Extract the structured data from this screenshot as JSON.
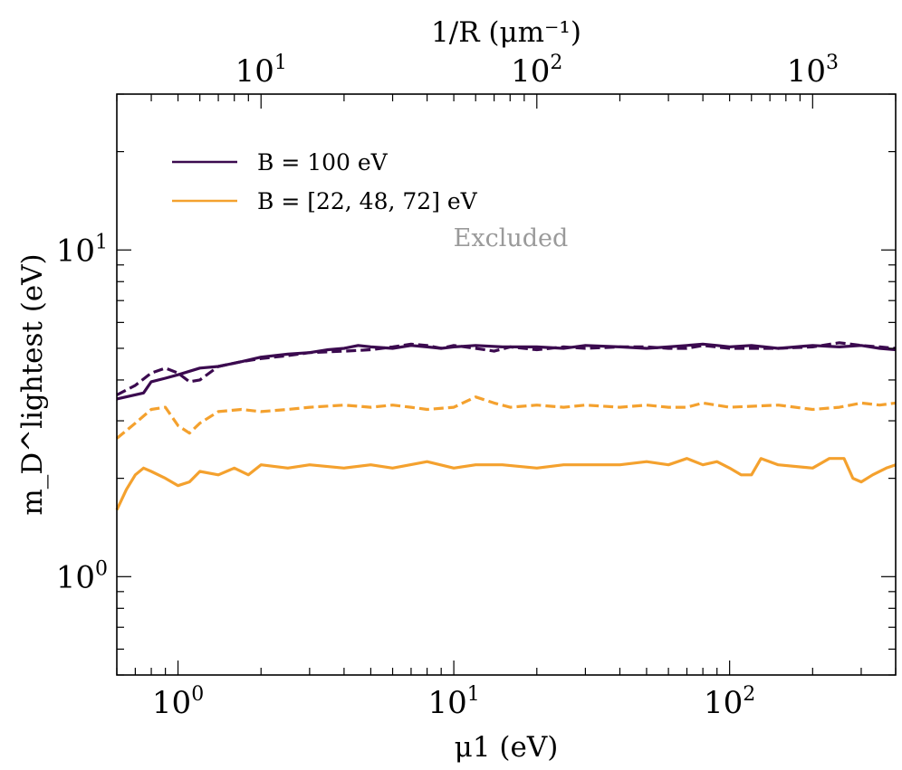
{
  "chart_data": {
    "type": "line",
    "title": "",
    "xlabel": "μ1 (eV)",
    "ylabel": "m_D^lightest (eV)",
    "top_xlabel": "1/R (μm⁻¹)",
    "xscale": "log",
    "yscale": "log",
    "xlim": [
      0.6,
      400
    ],
    "ylim": [
      0.5,
      30
    ],
    "top_xlim": [
      3.0,
      2000
    ],
    "x_ticks": [
      {
        "value": 1,
        "base": "10",
        "exp": "0"
      },
      {
        "value": 10,
        "base": "10",
        "exp": "1"
      },
      {
        "value": 100,
        "base": "10",
        "exp": "2"
      }
    ],
    "y_ticks": [
      {
        "value": 1,
        "base": "10",
        "exp": "0"
      },
      {
        "value": 10,
        "base": "10",
        "exp": "1"
      }
    ],
    "top_x_ticks": [
      {
        "value": 10,
        "base": "10",
        "exp": "1"
      },
      {
        "value": 100,
        "base": "10",
        "exp": "2"
      },
      {
        "value": 1000,
        "base": "10",
        "exp": "3"
      }
    ],
    "legend": {
      "placement": "top-left",
      "entries": [
        {
          "label": "B = 100 eV",
          "color": "#3b0a4f"
        },
        {
          "label": "B = [22, 48, 72] eV",
          "color": "#f4a12e"
        }
      ]
    },
    "annotations": [
      {
        "text": "Excluded",
        "x": 12,
        "y": 10.5,
        "color": "#9a9a9a"
      }
    ],
    "series": [
      {
        "color": "#3b0a4f",
        "dash": "solid",
        "x": [
          0.6,
          0.75,
          0.8,
          0.9,
          1.0,
          1.2,
          1.4,
          1.7,
          2.0,
          2.5,
          3.0,
          3.5,
          4.0,
          4.5,
          5.0,
          6.0,
          7.0,
          8.0,
          9.0,
          10.0,
          12.0,
          15.0,
          20.0,
          25.0,
          30.0,
          40.0,
          50.0,
          60.0,
          70.0,
          80.0,
          90.0,
          100.0,
          120.0,
          150.0,
          200.0,
          250.0,
          300.0,
          350.0,
          400.0
        ],
        "y": [
          3.5,
          3.65,
          3.95,
          4.05,
          4.15,
          4.35,
          4.4,
          4.55,
          4.7,
          4.8,
          4.85,
          4.95,
          5.0,
          5.1,
          5.05,
          5.0,
          5.1,
          5.05,
          5.0,
          5.05,
          5.1,
          5.05,
          5.05,
          5.0,
          5.1,
          5.05,
          5.0,
          5.05,
          5.1,
          5.15,
          5.1,
          5.05,
          5.1,
          5.0,
          5.1,
          5.05,
          5.1,
          5.0,
          4.95
        ]
      },
      {
        "color": "#3b0a4f",
        "dash": "dashed",
        "x": [
          0.6,
          0.7,
          0.8,
          0.9,
          1.0,
          1.1,
          1.2,
          1.4,
          1.7,
          2.0,
          2.5,
          3.0,
          4.0,
          5.0,
          6.0,
          7.0,
          8.0,
          9.0,
          10.0,
          12.0,
          14.0,
          16.0,
          20.0,
          25.0,
          30.0,
          40.0,
          50.0,
          60.0,
          70.0,
          80.0,
          100.0,
          150.0,
          200.0,
          250.0,
          300.0,
          350.0,
          400.0
        ],
        "y": [
          3.6,
          3.85,
          4.2,
          4.35,
          4.2,
          3.95,
          4.0,
          4.4,
          4.55,
          4.65,
          4.75,
          4.85,
          4.9,
          4.95,
          5.05,
          5.15,
          5.1,
          5.0,
          5.1,
          5.0,
          4.9,
          5.05,
          4.95,
          5.05,
          5.0,
          5.05,
          5.05,
          5.0,
          5.0,
          5.1,
          5.0,
          5.0,
          5.05,
          5.2,
          5.1,
          5.05,
          5.0
        ]
      },
      {
        "color": "#f4a12e",
        "dash": "dashed",
        "x": [
          0.6,
          0.7,
          0.8,
          0.9,
          1.0,
          1.1,
          1.2,
          1.4,
          1.7,
          2.0,
          2.5,
          3.0,
          4.0,
          5.0,
          6.0,
          7.0,
          8.0,
          10.0,
          12.0,
          14.0,
          16.0,
          20.0,
          25.0,
          30.0,
          40.0,
          50.0,
          60.0,
          70.0,
          80.0,
          100.0,
          150.0,
          200.0,
          250.0,
          300.0,
          350.0,
          400.0
        ],
        "y": [
          2.65,
          2.95,
          3.25,
          3.3,
          2.9,
          2.75,
          2.95,
          3.2,
          3.25,
          3.2,
          3.25,
          3.3,
          3.35,
          3.3,
          3.35,
          3.3,
          3.25,
          3.3,
          3.55,
          3.4,
          3.3,
          3.35,
          3.3,
          3.35,
          3.3,
          3.35,
          3.3,
          3.3,
          3.4,
          3.3,
          3.35,
          3.25,
          3.3,
          3.4,
          3.35,
          3.4
        ]
      },
      {
        "color": "#f4a12e",
        "dash": "solid",
        "x": [
          0.6,
          0.65,
          0.7,
          0.75,
          0.8,
          0.9,
          1.0,
          1.1,
          1.2,
          1.4,
          1.6,
          1.8,
          2.0,
          2.5,
          3.0,
          4.0,
          5.0,
          6.0,
          8.0,
          10.0,
          12.0,
          15.0,
          20.0,
          25.0,
          30.0,
          40.0,
          50.0,
          60.0,
          70.0,
          80.0,
          90.0,
          100.0,
          110.0,
          120.0,
          130.0,
          150.0,
          200.0,
          230.0,
          260.0,
          280.0,
          300.0,
          330.0,
          370.0,
          400.0
        ],
        "y": [
          1.6,
          1.85,
          2.05,
          2.15,
          2.1,
          2.0,
          1.9,
          1.95,
          2.1,
          2.05,
          2.15,
          2.05,
          2.2,
          2.15,
          2.2,
          2.15,
          2.2,
          2.15,
          2.25,
          2.15,
          2.2,
          2.2,
          2.15,
          2.2,
          2.2,
          2.2,
          2.25,
          2.2,
          2.3,
          2.2,
          2.25,
          2.15,
          2.05,
          2.05,
          2.3,
          2.2,
          2.15,
          2.3,
          2.3,
          2.0,
          1.95,
          2.05,
          2.15,
          2.2
        ]
      }
    ]
  }
}
